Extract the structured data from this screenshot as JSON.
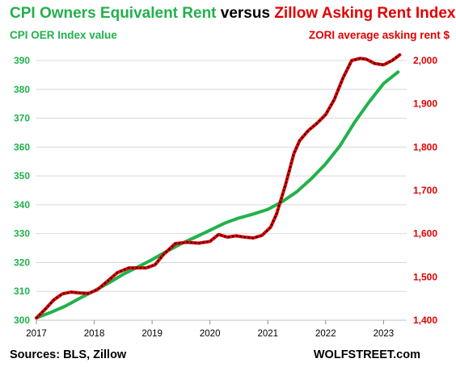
{
  "chart_data": {
    "type": "line",
    "title_parts": [
      {
        "text": "CPI Owners Equivalent Rent",
        "color": "#22b14c"
      },
      {
        "text": " versus ",
        "color": "#000000"
      },
      {
        "text": "Zillow Asking Rent Index",
        "color": "#e00000"
      }
    ],
    "left_axis_label": "CPI OER  Index value",
    "right_axis_label": "ZORI average asking rent $",
    "left_ylim": [
      300,
      390
    ],
    "left_ticks": [
      "300",
      "310",
      "320",
      "330",
      "340",
      "350",
      "360",
      "370",
      "380",
      "390"
    ],
    "right_ylim": [
      1400,
      2000
    ],
    "right_ticks": [
      "1,400",
      "1,500",
      "1,600",
      "1,700",
      "1,800",
      "1,900",
      "2,000"
    ],
    "x_ticks": [
      "2017",
      "2018",
      "2019",
      "2020",
      "2021",
      "2022",
      "2023"
    ],
    "xlim": [
      2017.0,
      2023.4
    ],
    "grid": true,
    "series": [
      {
        "axis": "left",
        "color": "#22b14c",
        "x": [
          2017.0,
          2017.25,
          2017.5,
          2017.75,
          2018.0,
          2018.25,
          2018.5,
          2018.75,
          2019.0,
          2019.25,
          2019.5,
          2019.75,
          2020.0,
          2020.25,
          2020.5,
          2020.75,
          2021.0,
          2021.25,
          2021.5,
          2021.75,
          2022.0,
          2022.25,
          2022.5,
          2022.75,
          2023.0,
          2023.25
        ],
        "values": [
          300.8,
          302.7,
          304.9,
          307.6,
          310.2,
          312.9,
          315.9,
          318.4,
          321.0,
          323.8,
          326.5,
          328.8,
          331.2,
          333.6,
          335.4,
          336.8,
          338.4,
          341.1,
          344.5,
          349.0,
          354.2,
          360.5,
          368.6,
          375.6,
          382.0,
          386.0
        ]
      },
      {
        "axis": "right",
        "color": "#e00000",
        "x": [
          2017.0,
          2017.15,
          2017.3,
          2017.45,
          2017.6,
          2017.75,
          2017.9,
          2018.05,
          2018.2,
          2018.4,
          2018.6,
          2018.75,
          2018.9,
          2019.05,
          2019.2,
          2019.4,
          2019.6,
          2019.8,
          2020.0,
          2020.15,
          2020.3,
          2020.45,
          2020.6,
          2020.75,
          2020.9,
          2021.05,
          2021.15,
          2021.3,
          2021.45,
          2021.55,
          2021.7,
          2021.85,
          2022.0,
          2022.15,
          2022.3,
          2022.45,
          2022.6,
          2022.7,
          2022.85,
          2023.0,
          2023.15,
          2023.28
        ],
        "values": [
          1405,
          1425,
          1447,
          1461,
          1465,
          1463,
          1462,
          1470,
          1487,
          1510,
          1521,
          1521,
          1521,
          1528,
          1552,
          1577,
          1580,
          1578,
          1582,
          1598,
          1592,
          1595,
          1592,
          1590,
          1596,
          1615,
          1645,
          1710,
          1785,
          1815,
          1838,
          1855,
          1875,
          1910,
          1960,
          2000,
          2005,
          2003,
          1993,
          1990,
          2000,
          2013
        ]
      }
    ],
    "sources": "Sources: BLS, Zillow",
    "watermark": "WOLFSTREET.com"
  }
}
